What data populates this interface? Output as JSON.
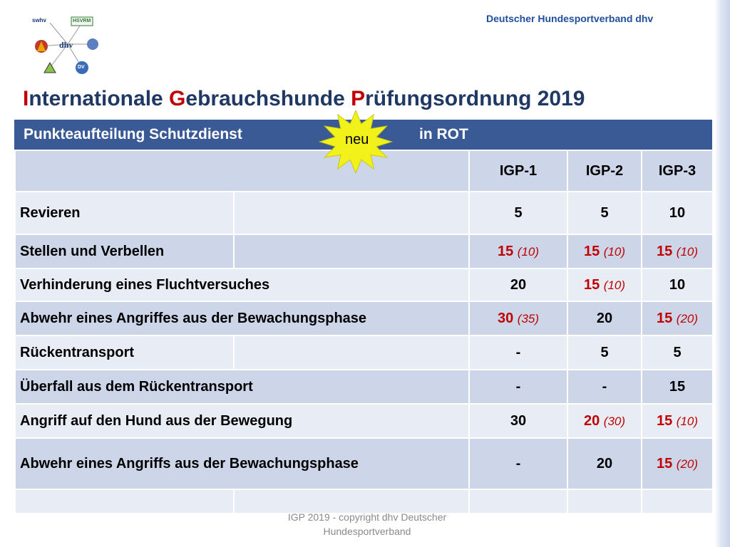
{
  "organization": "Deutscher Hundesportverband dhv",
  "logos": [
    "swhv",
    "HSVRM",
    "dhv",
    "DV"
  ],
  "title": {
    "parts": [
      {
        "text": "I",
        "red": true
      },
      {
        "text": "nternationale ",
        "red": false
      },
      {
        "text": "G",
        "red": true
      },
      {
        "text": "ebrauchshunde ",
        "red": false
      },
      {
        "text": "P",
        "red": true
      },
      {
        "text": "rüfungsordnung 2019",
        "red": false
      }
    ]
  },
  "table": {
    "header_left": "Punkteaufteilung Schutzdienst",
    "badge": "neu",
    "header_right": "in ROT",
    "columns": [
      "IGP-1",
      "IGP-2",
      "IGP-3"
    ],
    "rows": [
      {
        "label": "Revieren",
        "values": [
          {
            "v": "5",
            "red": false,
            "old": ""
          },
          {
            "v": "5",
            "red": false,
            "old": ""
          },
          {
            "v": "10",
            "red": false,
            "old": ""
          }
        ]
      },
      {
        "label": "Stellen und Verbellen",
        "values": [
          {
            "v": "15",
            "red": true,
            "old": "(10)"
          },
          {
            "v": "15",
            "red": true,
            "old": "(10)"
          },
          {
            "v": "15",
            "red": true,
            "old": "(10)"
          }
        ]
      },
      {
        "label": "Verhinderung eines Fluchtversuches",
        "values": [
          {
            "v": "20",
            "red": false,
            "old": ""
          },
          {
            "v": "15",
            "red": true,
            "old": "(10)"
          },
          {
            "v": "10",
            "red": false,
            "old": ""
          }
        ]
      },
      {
        "label": "Abwehr eines Angriffes aus der Bewachungsphase",
        "values": [
          {
            "v": "30",
            "red": true,
            "old": "(35)"
          },
          {
            "v": "20",
            "red": false,
            "old": ""
          },
          {
            "v": "15",
            "red": true,
            "old": "(20)"
          }
        ]
      },
      {
        "label": "Rückentransport",
        "values": [
          {
            "v": "-",
            "red": false,
            "old": ""
          },
          {
            "v": "5",
            "red": false,
            "old": ""
          },
          {
            "v": "5",
            "red": false,
            "old": ""
          }
        ]
      },
      {
        "label": "Überfall aus dem Rückentransport",
        "values": [
          {
            "v": "-",
            "red": false,
            "old": ""
          },
          {
            "v": "-",
            "red": false,
            "old": ""
          },
          {
            "v": "15",
            "red": false,
            "old": ""
          }
        ]
      },
      {
        "label": "Angriff auf den Hund aus der Bewegung",
        "values": [
          {
            "v": "30",
            "red": false,
            "old": ""
          },
          {
            "v": "20",
            "red": true,
            "old": "(30)"
          },
          {
            "v": "15",
            "red": true,
            "old": "(10)"
          }
        ]
      },
      {
        "label": "Abwehr eines Angriffs aus der Bewachungsphase",
        "values": [
          {
            "v": "-",
            "red": false,
            "old": ""
          },
          {
            "v": "20",
            "red": false,
            "old": ""
          },
          {
            "v": "15",
            "red": true,
            "old": "(20)"
          }
        ]
      },
      {
        "label": "",
        "values": [
          {
            "v": "",
            "red": false,
            "old": ""
          },
          {
            "v": "",
            "red": false,
            "old": ""
          },
          {
            "v": "",
            "red": false,
            "old": ""
          }
        ]
      }
    ]
  },
  "footer": {
    "line1": "IGP 2019 -  copyright dhv Deutscher",
    "line2": "Hundesportverband"
  },
  "colors": {
    "header_bg": "#3a5a96",
    "row_dark": "#cdd6e9",
    "row_light": "#e8ecf5",
    "accent_red": "#c00000",
    "title_blue": "#1f3864",
    "burst_yellow": "#f2f21a"
  }
}
